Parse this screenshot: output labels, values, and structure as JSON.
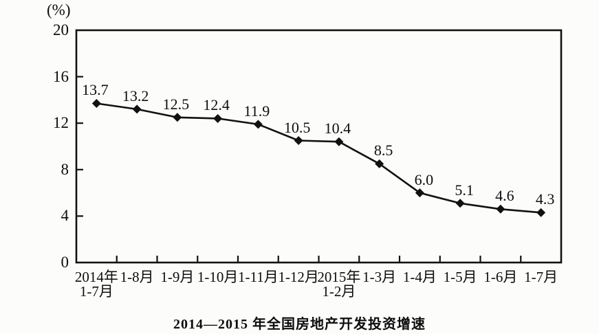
{
  "figure": {
    "unit_label": "(%)"
  },
  "chart_data": {
    "type": "line",
    "title": "2014—2015 年全国房地产开发投资增速",
    "xlabel": "",
    "ylabel": "(%)",
    "categories": [
      [
        "2014年",
        "1-7月"
      ],
      [
        "1-8月"
      ],
      [
        "1-9月"
      ],
      [
        "1-10月"
      ],
      [
        "1-11月"
      ],
      [
        "1-12月"
      ],
      [
        "2015年",
        "1-2月"
      ],
      [
        "1-3月"
      ],
      [
        "1-4月"
      ],
      [
        "1-5月"
      ],
      [
        "1-6月"
      ],
      [
        "1-7月"
      ]
    ],
    "values": [
      13.7,
      13.2,
      12.5,
      12.4,
      11.9,
      10.5,
      10.4,
      8.5,
      6.0,
      5.1,
      4.6,
      4.3
    ],
    "data_labels": [
      "13.7",
      "13.2",
      "12.5",
      "12.4",
      "11.9",
      "10.5",
      "10.4",
      "8.5",
      "6.0",
      "5.1",
      "4.6",
      "4.3"
    ],
    "ylim": [
      0,
      20
    ],
    "y_ticks": [
      0,
      4,
      8,
      12,
      16,
      20
    ],
    "grid": false,
    "legend": "none",
    "marker": "diamond",
    "line_color": "#111111",
    "marker_color": "#111111",
    "axis_color": "#111111",
    "background_color": "#fcfcfb"
  }
}
